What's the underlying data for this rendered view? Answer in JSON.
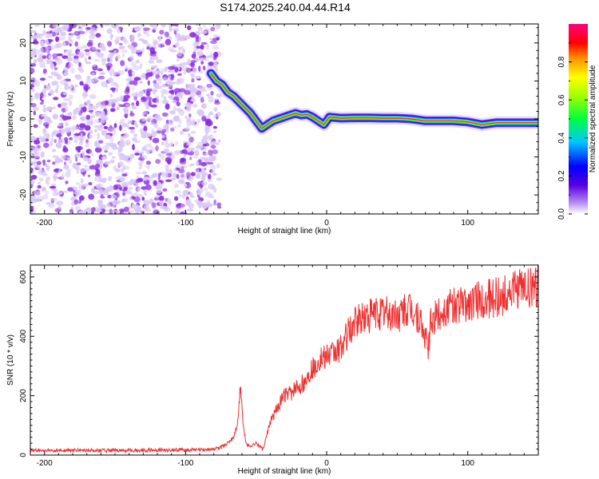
{
  "title": "S174.2025.240.04.44.R14",
  "colors": {
    "signal": "#f03030",
    "noise": "#8a2be2",
    "noise_light": "#d9c8f5",
    "frame": "#000000"
  },
  "chart_data": [
    {
      "type": "heatmap",
      "name": "spectrogram",
      "xlabel": "Height of straight line (km)",
      "ylabel": "Frequency (Hz)",
      "xlim": [
        -210,
        150
      ],
      "ylim": [
        -25,
        25
      ],
      "xticks": [
        -200,
        -100,
        0,
        100
      ],
      "yticks": [
        -20,
        -10,
        0,
        10,
        20
      ],
      "noise_region_x": [
        -210,
        -80
      ],
      "ridge": {
        "x": [
          -82,
          -78,
          -74,
          -70,
          -66,
          -62,
          -58,
          -54,
          -50,
          -46,
          -42,
          -38,
          -34,
          -30,
          -26,
          -22,
          -18,
          -14,
          -10,
          -6,
          -2,
          2,
          10,
          20,
          30,
          40,
          50,
          60,
          70,
          80,
          90,
          100,
          110,
          120,
          130,
          140,
          150
        ],
        "y": [
          12,
          10,
          9,
          7,
          6,
          4.5,
          3,
          1.5,
          -0.5,
          -2.5,
          -1.5,
          -0.5,
          0,
          0.5,
          1,
          1.5,
          1,
          1.2,
          0.5,
          -0.5,
          -1.5,
          0.5,
          0.2,
          0.3,
          0.3,
          0.2,
          0.2,
          0,
          -0.5,
          -0.5,
          -0.5,
          -0.8,
          -1.5,
          -1,
          -1,
          -1,
          -1
        ]
      },
      "colorbar": {
        "label": "Normalized spectral amplitude",
        "range": [
          0,
          1
        ],
        "ticks": [
          "0.0",
          "0.2",
          "0.4",
          "0.6",
          "0.8"
        ]
      }
    },
    {
      "type": "line",
      "name": "snr",
      "xlabel": "Height of straight line (km)",
      "ylabel": "SNR (10 * v/v)",
      "xlim": [
        -210,
        150
      ],
      "ylim": [
        0,
        640
      ],
      "xticks": [
        -200,
        -100,
        0,
        100
      ],
      "yticks": [
        0,
        200,
        400,
        600
      ],
      "series": [
        {
          "name": "SNR",
          "x": [
            -210,
            -190,
            -170,
            -150,
            -130,
            -110,
            -90,
            -80,
            -75,
            -70,
            -66,
            -63,
            -61,
            -59,
            -57,
            -55,
            -50,
            -45,
            -40,
            -35,
            -30,
            -25,
            -20,
            -15,
            -10,
            -5,
            0,
            5,
            10,
            15,
            20,
            25,
            30,
            35,
            40,
            50,
            60,
            65,
            70,
            72,
            74,
            80,
            90,
            100,
            110,
            120,
            130,
            140,
            150
          ],
          "y": [
            15,
            15,
            16,
            15,
            16,
            17,
            18,
            20,
            25,
            40,
            60,
            110,
            240,
            90,
            40,
            30,
            40,
            20,
            110,
            160,
            200,
            210,
            230,
            250,
            290,
            320,
            330,
            340,
            360,
            410,
            440,
            460,
            470,
            480,
            480,
            470,
            490,
            460,
            390,
            360,
            450,
            480,
            500,
            510,
            520,
            530,
            545,
            560,
            570
          ]
        }
      ]
    }
  ]
}
